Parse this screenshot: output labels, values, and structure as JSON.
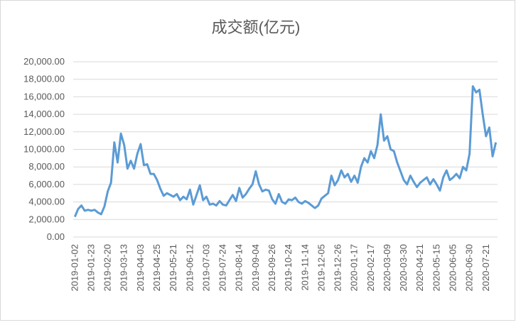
{
  "chart_data": {
    "type": "line",
    "title": "成交额(亿元)",
    "categories": [
      "2019-01-02",
      null,
      null,
      null,
      null,
      "2019-01-23",
      null,
      null,
      null,
      null,
      "2019-02-20",
      null,
      null,
      null,
      null,
      "2019-03-13",
      null,
      null,
      null,
      null,
      "2019-04-03",
      null,
      null,
      null,
      null,
      "2019-04-25",
      null,
      null,
      null,
      null,
      "2019-05-21",
      null,
      null,
      null,
      null,
      "2019-06-12",
      null,
      null,
      null,
      null,
      "2019-07-03",
      null,
      null,
      null,
      null,
      "2019-07-24",
      null,
      null,
      null,
      null,
      "2019-08-14",
      null,
      null,
      null,
      null,
      "2019-09-04",
      null,
      null,
      null,
      null,
      "2019-09-26",
      null,
      null,
      null,
      null,
      "2019-10-24",
      null,
      null,
      null,
      null,
      "2019-11-14",
      null,
      null,
      null,
      null,
      "2019-12-05",
      null,
      null,
      null,
      null,
      "2019-12-26",
      null,
      null,
      null,
      null,
      "2020-01-17",
      null,
      null,
      null,
      null,
      "2020-02-17",
      null,
      null,
      null,
      null,
      "2020-03-09",
      null,
      null,
      null,
      null,
      "2020-03-30",
      null,
      null,
      null,
      null,
      "2020-04-21",
      null,
      null,
      null,
      null,
      "2020-05-15",
      null,
      null,
      null,
      null,
      "2020-06-05",
      null,
      null,
      null,
      null,
      "2020-06-30",
      null,
      null,
      null,
      null,
      "2020-07-21",
      null,
      null,
      null
    ],
    "series": [
      {
        "color": "#5b9bd5",
        "values": [
          2300,
          3200,
          3600,
          3000,
          3100,
          3000,
          3100,
          2800,
          2600,
          3500,
          5200,
          6200,
          10800,
          8500,
          11800,
          10500,
          7800,
          8700,
          7800,
          9500,
          10600,
          8200,
          8300,
          7200,
          7200,
          6500,
          5500,
          4700,
          5000,
          4800,
          4600,
          4900,
          4200,
          4600,
          4300,
          5400,
          3700,
          4800,
          5900,
          4200,
          4600,
          3700,
          3800,
          3600,
          4100,
          3700,
          3600,
          4200,
          4800,
          4100,
          5600,
          4500,
          4900,
          5500,
          6000,
          7500,
          6000,
          5200,
          5400,
          5300,
          4300,
          3800,
          4900,
          4000,
          3800,
          4300,
          4200,
          4500,
          4000,
          3800,
          4100,
          3900,
          3600,
          3300,
          3600,
          4400,
          4700,
          5000,
          7000,
          5900,
          6500,
          7600,
          6800,
          7200,
          6300,
          7000,
          6200,
          8000,
          9000,
          8500,
          9800,
          9000,
          10500,
          14000,
          11000,
          11500,
          10000,
          9800,
          8500,
          7500,
          6500,
          6000,
          7000,
          6300,
          5700,
          6200,
          6500,
          6800,
          6000,
          6600,
          6000,
          5300,
          6800,
          7600,
          6500,
          6800,
          7200,
          6700,
          8000,
          7600,
          9500,
          17200,
          16500,
          16800,
          14000,
          11500,
          12500,
          9200,
          10800
        ]
      }
    ],
    "ylim": [
      0,
      20000
    ],
    "yticks": [
      {
        "value": 0,
        "label": "0.00"
      },
      {
        "value": 2000,
        "label": "2,000.00"
      },
      {
        "value": 4000,
        "label": "4,000.00"
      },
      {
        "value": 6000,
        "label": "6,000.00"
      },
      {
        "value": 8000,
        "label": "8,000.00"
      },
      {
        "value": 10000,
        "label": "10,000.00"
      },
      {
        "value": 12000,
        "label": "12,000.00"
      },
      {
        "value": 14000,
        "label": "14,000.00"
      },
      {
        "value": 16000,
        "label": "16,000.00"
      },
      {
        "value": 18000,
        "label": "18,000.00"
      },
      {
        "value": 20000,
        "label": "20,000.00"
      }
    ],
    "grid": true
  }
}
